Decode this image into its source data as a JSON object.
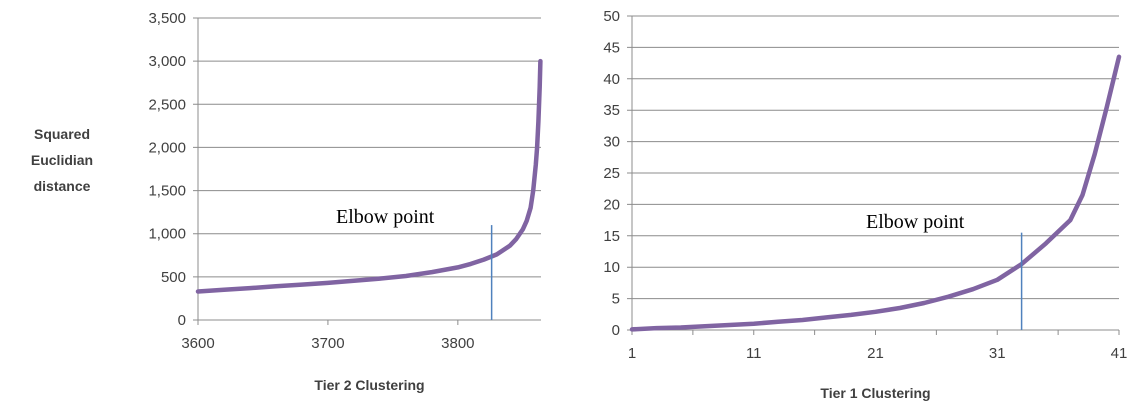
{
  "chart_data": [
    {
      "type": "line",
      "title": "",
      "xlabel": "Tier 2 Clustering",
      "ylabel": "Squared Euclidian distance",
      "ylabel_lines": [
        "Squared",
        "Euclidian",
        "distance"
      ],
      "xlim": [
        3600,
        3864
      ],
      "ylim": [
        0,
        3500
      ],
      "x_ticks": [
        "3600",
        "3700",
        "3800"
      ],
      "x_tick_values": [
        3600,
        3700,
        3800
      ],
      "y_ticks": [
        "0",
        "500",
        "1,000",
        "1,500",
        "2,000",
        "2,500",
        "3,000",
        "3,500"
      ],
      "y_tick_values": [
        0,
        500,
        1000,
        1500,
        2000,
        2500,
        3000,
        3500
      ],
      "grid": "horizontal",
      "series_color": "#8064A2",
      "annotation": {
        "text": "Elbow point",
        "x": 3826,
        "y_from": 0,
        "y_to": 1100
      },
      "annotation_color": "#4F81BD",
      "x": [
        3600,
        3620,
        3640,
        3660,
        3680,
        3700,
        3720,
        3740,
        3760,
        3780,
        3800,
        3810,
        3820,
        3830,
        3840,
        3845,
        3850,
        3853,
        3856,
        3858,
        3860,
        3861,
        3862,
        3863,
        3863.5
      ],
      "values": [
        330,
        350,
        370,
        390,
        410,
        430,
        455,
        480,
        510,
        555,
        610,
        650,
        700,
        760,
        860,
        940,
        1050,
        1150,
        1300,
        1500,
        1800,
        2000,
        2300,
        2700,
        3000
      ]
    },
    {
      "type": "line",
      "title": "",
      "xlabel": "Tier 1 Clustering",
      "ylabel": "",
      "xlim": [
        1,
        41
      ],
      "ylim": [
        0,
        50
      ],
      "x_ticks": [
        "1",
        "11",
        "21",
        "31",
        "41"
      ],
      "x_tick_values": [
        1,
        11,
        21,
        31,
        41
      ],
      "y_ticks": [
        "0",
        "5",
        "10",
        "15",
        "20",
        "25",
        "30",
        "35",
        "40",
        "45",
        "50"
      ],
      "y_tick_values": [
        0,
        5,
        10,
        15,
        20,
        25,
        30,
        35,
        40,
        45,
        50
      ],
      "grid": "horizontal",
      "series_color": "#8064A2",
      "annotation": {
        "text": "Elbow point",
        "x": 33,
        "y_from": 0,
        "y_to": 15.5
      },
      "annotation_color": "#4F81BD",
      "x": [
        1,
        3,
        5,
        7,
        9,
        11,
        13,
        15,
        17,
        19,
        21,
        23,
        25,
        27,
        29,
        31,
        33,
        35,
        37,
        38,
        39,
        40,
        41
      ],
      "values": [
        0.1,
        0.3,
        0.4,
        0.6,
        0.8,
        1.0,
        1.3,
        1.6,
        2.0,
        2.4,
        2.9,
        3.5,
        4.3,
        5.3,
        6.5,
        8.0,
        10.5,
        13.8,
        17.5,
        21.5,
        28.0,
        35.5,
        43.5
      ]
    }
  ]
}
